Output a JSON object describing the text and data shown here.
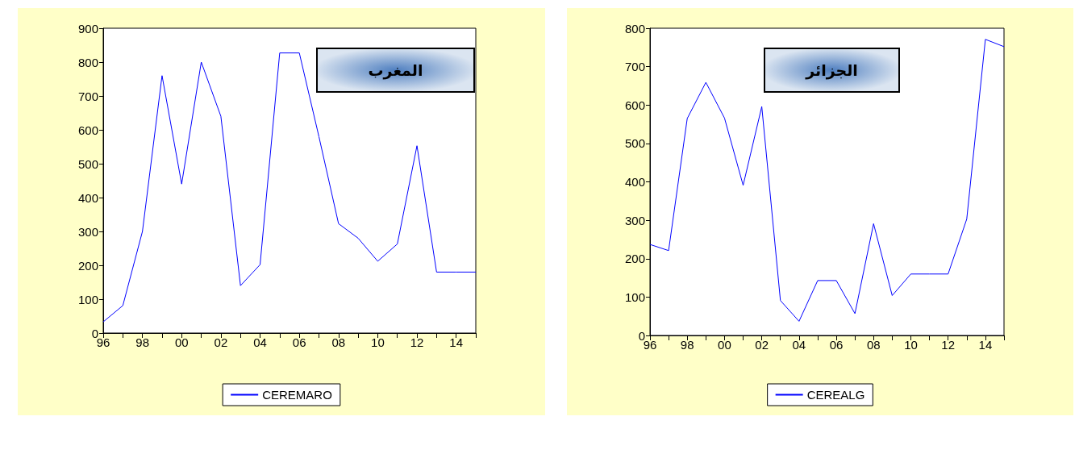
{
  "chart_data": [
    {
      "type": "line",
      "title": "المغرب",
      "x": [
        1996,
        1997,
        1998,
        1999,
        2000,
        2001,
        2002,
        2003,
        2004,
        2005,
        2006,
        2007,
        2008,
        2009,
        2010,
        2011,
        2012,
        2013,
        2014,
        2015
      ],
      "series": [
        {
          "name": "CEREMARO",
          "color": "#0000ff",
          "values": [
            33,
            81,
            300,
            760,
            440,
            800,
            640,
            140,
            202,
            827,
            827,
            580,
            323,
            280,
            212,
            263,
            553,
            180,
            180,
            180
          ]
        }
      ],
      "xlim": [
        1996,
        2015
      ],
      "xticks": [
        {
          "value": 1996,
          "label": "96"
        },
        {
          "value": 1997,
          "label": null
        },
        {
          "value": 1998,
          "label": "98"
        },
        {
          "value": 1999,
          "label": null
        },
        {
          "value": 2000,
          "label": "00"
        },
        {
          "value": 2001,
          "label": null
        },
        {
          "value": 2002,
          "label": "02"
        },
        {
          "value": 2003,
          "label": null
        },
        {
          "value": 2004,
          "label": "04"
        },
        {
          "value": 2005,
          "label": null
        },
        {
          "value": 2006,
          "label": "06"
        },
        {
          "value": 2007,
          "label": null
        },
        {
          "value": 2008,
          "label": "08"
        },
        {
          "value": 2009,
          "label": null
        },
        {
          "value": 2010,
          "label": "10"
        },
        {
          "value": 2011,
          "label": null
        },
        {
          "value": 2012,
          "label": "12"
        },
        {
          "value": 2013,
          "label": null
        },
        {
          "value": 2014,
          "label": "14"
        },
        {
          "value": 2015,
          "label": null
        }
      ],
      "ylim": [
        0,
        900
      ],
      "yticks": [
        0,
        100,
        200,
        300,
        400,
        500,
        600,
        700,
        800,
        900
      ],
      "grid": false,
      "legend": "bottom",
      "marker": "none",
      "line_style": "solid"
    },
    {
      "type": "line",
      "title": "الجزائر",
      "x": [
        1996,
        1997,
        1998,
        1999,
        2000,
        2001,
        2002,
        2003,
        2004,
        2005,
        2006,
        2007,
        2008,
        2009,
        2010,
        2011,
        2012,
        2013,
        2014,
        2015
      ],
      "series": [
        {
          "name": "CEREALG",
          "color": "#0000ff",
          "values": [
            237,
            221,
            565,
            659,
            566,
            391,
            596,
            91,
            37,
            143,
            143,
            57,
            291,
            104,
            160,
            160,
            160,
            303,
            771,
            752
          ]
        }
      ],
      "xlim": [
        1996,
        2015
      ],
      "xticks": [
        {
          "value": 1996,
          "label": "96"
        },
        {
          "value": 1997,
          "label": null
        },
        {
          "value": 1998,
          "label": "98"
        },
        {
          "value": 1999,
          "label": null
        },
        {
          "value": 2000,
          "label": "00"
        },
        {
          "value": 2001,
          "label": null
        },
        {
          "value": 2002,
          "label": "02"
        },
        {
          "value": 2003,
          "label": null
        },
        {
          "value": 2004,
          "label": "04"
        },
        {
          "value": 2005,
          "label": null
        },
        {
          "value": 2006,
          "label": "06"
        },
        {
          "value": 2007,
          "label": null
        },
        {
          "value": 2008,
          "label": "08"
        },
        {
          "value": 2009,
          "label": null
        },
        {
          "value": 2010,
          "label": "10"
        },
        {
          "value": 2011,
          "label": null
        },
        {
          "value": 2012,
          "label": "12"
        },
        {
          "value": 2013,
          "label": null
        },
        {
          "value": 2014,
          "label": "14"
        },
        {
          "value": 2015,
          "label": null
        }
      ],
      "ylim": [
        0,
        800
      ],
      "yticks": [
        0,
        100,
        200,
        300,
        400,
        500,
        600,
        700,
        800
      ],
      "grid": false,
      "legend": "bottom",
      "marker": "none",
      "line_style": "solid"
    }
  ]
}
